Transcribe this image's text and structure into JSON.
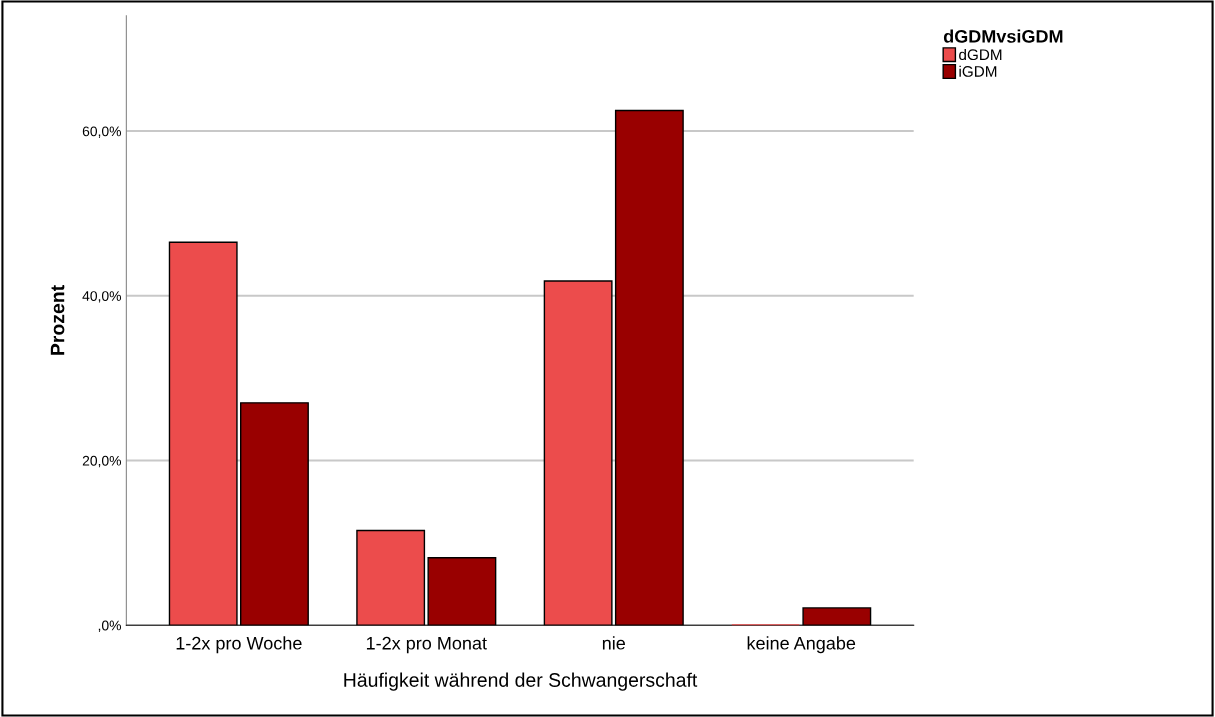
{
  "chart_data": {
    "type": "bar",
    "xlabel": "Häufigkeit während der Schwangerschaft",
    "ylabel": "Prozent",
    "legend_title": "dGDMvsiGDM",
    "categories": [
      "1-2x pro Woche",
      "1-2x pro Monat",
      "nie",
      "keine Angabe"
    ],
    "series": [
      {
        "name": "dGDM",
        "color": "#ec4c4c",
        "values": [
          46.5,
          11.5,
          41.8,
          0
        ]
      },
      {
        "name": "iGDM",
        "color": "#990000",
        "values": [
          27.0,
          8.2,
          62.5,
          2.1
        ]
      }
    ],
    "ylim": [
      0,
      74
    ],
    "yticks": [
      {
        "value": 0,
        "label": ",0%"
      },
      {
        "value": 20,
        "label": "20,0%"
      },
      {
        "value": 40,
        "label": "40,0%"
      },
      {
        "value": 60,
        "label": "60,0%"
      }
    ],
    "grid": "y",
    "legend": "top right"
  }
}
